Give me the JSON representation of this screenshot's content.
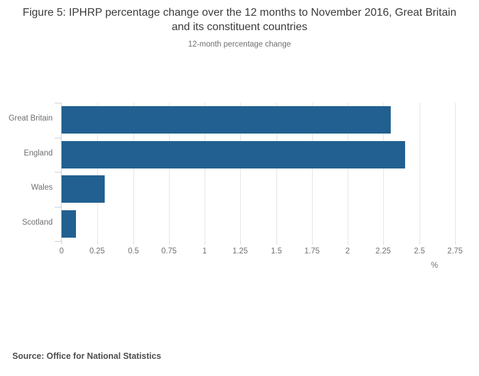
{
  "header": {
    "title": "Figure 5: IPHRP percentage change over the 12 months to November 2016, Great Britain and its constituent countries",
    "subtitle": "12-month percentage change"
  },
  "chart_data": {
    "type": "bar",
    "orientation": "horizontal",
    "title": "Figure 5: IPHRP percentage change over the 12 months to November 2016, Great Britain and its constituent countries",
    "subtitle": "12-month percentage change",
    "categories": [
      "Great Britain",
      "England",
      "Wales",
      "Scotland"
    ],
    "values": [
      2.3,
      2.4,
      0.3,
      0.1
    ],
    "xlabel": "%",
    "ylabel": "",
    "xlim": [
      0,
      2.75
    ],
    "xticks": [
      0,
      0.25,
      0.5,
      0.75,
      1,
      1.25,
      1.5,
      1.75,
      2,
      2.25,
      2.5,
      2.75
    ],
    "xtick_labels": [
      "0",
      "0.25",
      "0.5",
      "0.75",
      "1",
      "1.25",
      "1.5",
      "1.75",
      "2",
      "2.25",
      "2.5",
      "2.75"
    ],
    "grid": true,
    "legend": false,
    "colors": {
      "bar": "#216090",
      "gridline": "#e6e6e6",
      "axis_line": "#c7d3df",
      "bottom_tick": "#d9dde1",
      "label_text": "#6f6f6f",
      "title_text": "#3a3a3a"
    }
  },
  "footer": {
    "source": "Source: Office for National Statistics"
  }
}
